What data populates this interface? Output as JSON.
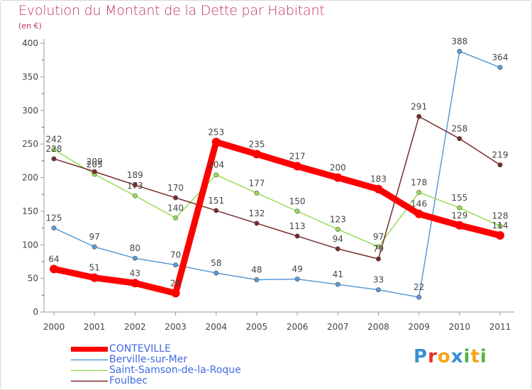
{
  "title": "Evolution du Montant de la Dette par Habitant",
  "subtitle": "(en €)",
  "brand": {
    "letters": [
      "P",
      "r",
      "o",
      "x",
      "i",
      "t",
      "i"
    ],
    "colors": [
      "#3a8fd6",
      "#e3322b",
      "#f4a41a",
      "#3a8fd6",
      "#57b33e",
      "#f4a41a",
      "#57b33e"
    ]
  },
  "chart_data": {
    "type": "line",
    "x": [
      2000,
      2001,
      2002,
      2003,
      2004,
      2005,
      2006,
      2007,
      2008,
      2009,
      2010,
      2011
    ],
    "ylim": [
      0,
      400
    ],
    "yticks": [
      0,
      50,
      100,
      150,
      200,
      250,
      300,
      350,
      400
    ],
    "grid": false,
    "legend_position": "bottom-left",
    "series": [
      {
        "name": "CONTEVILLE",
        "color": "#ff0000",
        "values": [
          64,
          51,
          43,
          28,
          253,
          235,
          217,
          200,
          183,
          146,
          129,
          114
        ],
        "labels": [
          "64",
          "51",
          "43",
          "28",
          "253",
          "235",
          "217",
          "200",
          "183",
          "146",
          "129",
          "114"
        ],
        "emphasis": true
      },
      {
        "name": "Berville-sur-Mer",
        "color": "#5b9bd5",
        "values": [
          125,
          97,
          80,
          70,
          58,
          48,
          49,
          41,
          33,
          22,
          388,
          364
        ],
        "labels": [
          "125",
          "97",
          "80",
          "70",
          "58",
          "48",
          "49",
          "41",
          "33",
          "22",
          "388",
          "364"
        ]
      },
      {
        "name": "Saint-Samson-de-la-Roque",
        "color": "#99dd55",
        "values": [
          242,
          205,
          173,
          140,
          204,
          177,
          150,
          123,
          97,
          178,
          155,
          128
        ],
        "labels": [
          "242",
          "205",
          "173",
          "140",
          "204",
          "177",
          "150",
          "123",
          "97",
          "178",
          "155",
          "128"
        ]
      },
      {
        "name": "Foulbec",
        "color": "#7a2a2a",
        "values": [
          228,
          209,
          189,
          170,
          151,
          132,
          113,
          94,
          79,
          291,
          258,
          219
        ],
        "labels": [
          "228",
          "209",
          "189",
          "170",
          "151",
          "132",
          "113",
          "94",
          "79",
          "291",
          "258",
          "219"
        ]
      }
    ]
  }
}
